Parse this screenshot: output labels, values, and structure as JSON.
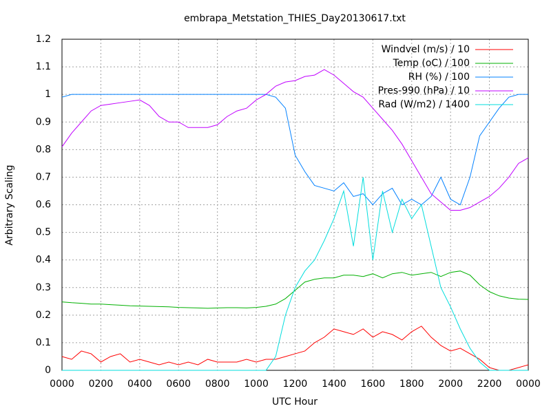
{
  "chart_data": {
    "type": "line",
    "title": "embrapa_Metstation_THIES_Day20130617.txt",
    "x_label": "UTC Hour",
    "y_label": "Arbitrary Scaling",
    "x": [
      0,
      0.5,
      1,
      1.5,
      2,
      2.5,
      3,
      3.5,
      4,
      4.5,
      5,
      5.5,
      6,
      6.5,
      7,
      7.5,
      8,
      8.5,
      9,
      9.5,
      10,
      10.5,
      11,
      11.5,
      12,
      12.5,
      13,
      13.5,
      14,
      14.5,
      15,
      15.5,
      16,
      16.5,
      17,
      17.5,
      18,
      18.5,
      19,
      19.5,
      20,
      20.5,
      21,
      21.5,
      22,
      22.5,
      23,
      23.5,
      24
    ],
    "series": [
      {
        "name": "Windvel (m/s) / 10",
        "color": "#ff0000",
        "values": [
          0.05,
          0.04,
          0.07,
          0.06,
          0.03,
          0.05,
          0.06,
          0.03,
          0.04,
          0.03,
          0.02,
          0.03,
          0.02,
          0.03,
          0.02,
          0.04,
          0.03,
          0.03,
          0.03,
          0.04,
          0.03,
          0.04,
          0.04,
          0.05,
          0.06,
          0.07,
          0.1,
          0.12,
          0.15,
          0.14,
          0.13,
          0.15,
          0.12,
          0.14,
          0.13,
          0.11,
          0.14,
          0.16,
          0.12,
          0.09,
          0.07,
          0.08,
          0.06,
          0.04,
          0.01,
          0,
          0,
          0.01,
          0.02
        ]
      },
      {
        "name": "Temp (oC) / 100",
        "color": "#00b000",
        "values": [
          0.248,
          0.245,
          0.243,
          0.24,
          0.24,
          0.238,
          0.236,
          0.234,
          0.233,
          0.232,
          0.231,
          0.23,
          0.228,
          0.227,
          0.226,
          0.225,
          0.226,
          0.227,
          0.227,
          0.226,
          0.228,
          0.232,
          0.24,
          0.26,
          0.29,
          0.32,
          0.33,
          0.335,
          0.335,
          0.345,
          0.345,
          0.34,
          0.35,
          0.335,
          0.35,
          0.355,
          0.345,
          0.35,
          0.355,
          0.34,
          0.355,
          0.36,
          0.345,
          0.31,
          0.285,
          0.27,
          0.262,
          0.258,
          0.257
        ]
      },
      {
        "name": "RH (%) / 100",
        "color": "#0080ff",
        "values": [
          0.99,
          1,
          1,
          1,
          1,
          1,
          1,
          1,
          1,
          1,
          1,
          1,
          1,
          1,
          1,
          1,
          1,
          1,
          1,
          1,
          1,
          1,
          0.99,
          0.95,
          0.78,
          0.72,
          0.67,
          0.66,
          0.65,
          0.68,
          0.63,
          0.64,
          0.6,
          0.64,
          0.66,
          0.6,
          0.62,
          0.6,
          0.63,
          0.7,
          0.62,
          0.6,
          0.7,
          0.85,
          0.9,
          0.95,
          0.99,
          1,
          1
        ]
      },
      {
        "name": "Pres-990 (hPa) / 10",
        "color": "#c000ff",
        "values": [
          0.81,
          0.86,
          0.9,
          0.94,
          0.96,
          0.965,
          0.97,
          0.975,
          0.98,
          0.96,
          0.92,
          0.9,
          0.9,
          0.88,
          0.88,
          0.88,
          0.89,
          0.92,
          0.94,
          0.95,
          0.98,
          1.0,
          1.03,
          1.045,
          1.05,
          1.065,
          1.07,
          1.09,
          1.07,
          1.04,
          1.01,
          0.99,
          0.95,
          0.91,
          0.87,
          0.82,
          0.76,
          0.7,
          0.64,
          0.61,
          0.58,
          0.58,
          0.59,
          0.61,
          0.63,
          0.66,
          0.7,
          0.75,
          0.77
        ]
      },
      {
        "name": "Rad (W/m2) / 1400",
        "color": "#00dddd",
        "values": [
          0,
          0,
          0,
          0,
          0,
          0,
          0,
          0,
          0,
          0,
          0,
          0,
          0,
          0,
          0,
          0,
          0,
          0,
          0,
          0,
          0,
          0,
          0.05,
          0.2,
          0.3,
          0.36,
          0.4,
          0.47,
          0.55,
          0.65,
          0.45,
          0.7,
          0.4,
          0.65,
          0.5,
          0.62,
          0.55,
          0.6,
          0.45,
          0.3,
          0.23,
          0.15,
          0.08,
          0.03,
          0,
          0,
          0,
          0,
          0
        ]
      }
    ],
    "xlim": [
      0,
      24
    ],
    "xticks": [
      {
        "value": 0,
        "label": "0000"
      },
      {
        "value": 2,
        "label": "0200"
      },
      {
        "value": 4,
        "label": "0400"
      },
      {
        "value": 6,
        "label": "0600"
      },
      {
        "value": 8,
        "label": "0800"
      },
      {
        "value": 10,
        "label": "1000"
      },
      {
        "value": 12,
        "label": "1200"
      },
      {
        "value": 14,
        "label": "1400"
      },
      {
        "value": 16,
        "label": "1600"
      },
      {
        "value": 18,
        "label": "1800"
      },
      {
        "value": 20,
        "label": "2000"
      },
      {
        "value": 22,
        "label": "2200"
      },
      {
        "value": 24,
        "label": "0000"
      }
    ],
    "ylim": [
      0,
      1.2
    ],
    "yticks": [
      0,
      0.1,
      0.2,
      0.3,
      0.4,
      0.5,
      0.6,
      0.7,
      0.8,
      0.9,
      1,
      1.1,
      1.2
    ],
    "grid": true,
    "legend": "top-right"
  }
}
